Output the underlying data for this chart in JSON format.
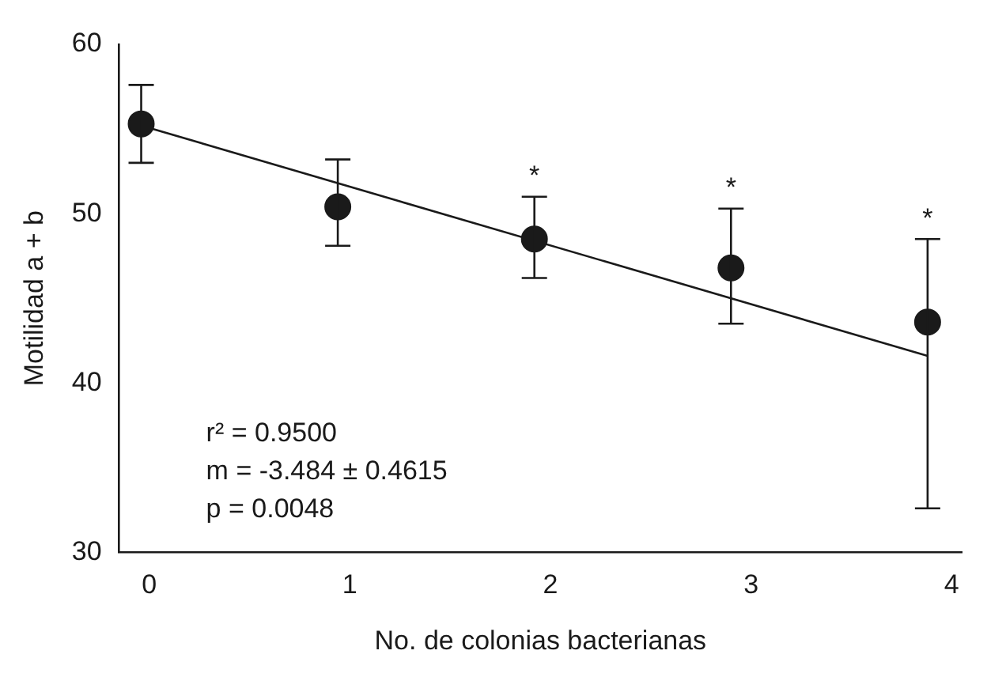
{
  "chart_data": {
    "type": "scatter",
    "xlabel": "No. de colonias bacterianas",
    "ylabel": "Motilidad a + b",
    "xlim": [
      -0.15,
      4.05
    ],
    "xticks": [
      0,
      1,
      2,
      3,
      4
    ],
    "ylim": [
      30,
      60
    ],
    "yticks": [
      30,
      40,
      50,
      60
    ],
    "grid": false,
    "legend": false,
    "marker": "circle",
    "series": [
      {
        "color": "#1a1a1a",
        "x": [
          -0.04,
          0.94,
          1.92,
          2.9,
          3.88
        ],
        "values": [
          55.3,
          50.4,
          48.5,
          46.8,
          43.6
        ],
        "errors": [
          [
            53.0,
            57.6
          ],
          [
            48.1,
            53.2
          ],
          [
            46.2,
            51.0
          ],
          [
            43.5,
            50.3
          ],
          [
            32.6,
            48.5
          ]
        ]
      },
      {
        "type": "line",
        "color": "#1a1a1a",
        "x": [
          -0.04,
          3.88
        ],
        "values": [
          55.2,
          41.6
        ],
        "marker": "none",
        "line_style": "solid"
      }
    ],
    "annotations": [
      "r² = 0.9500",
      "m = -3.484 ± 0.4615",
      "p = 0.0048",
      {
        "text": "*",
        "x": 1.92,
        "y": 51.0
      },
      {
        "text": "*",
        "x": 2.9,
        "y": 50.3
      },
      {
        "text": "*",
        "x": 3.88,
        "y": 48.5
      }
    ]
  }
}
